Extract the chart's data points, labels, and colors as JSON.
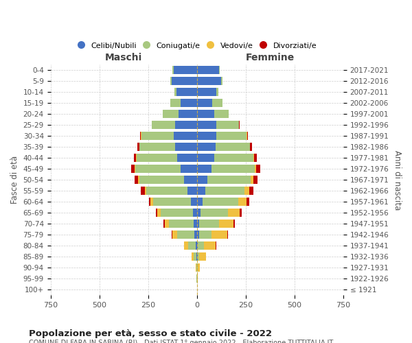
{
  "age_groups": [
    "100+",
    "95-99",
    "90-94",
    "85-89",
    "80-84",
    "75-79",
    "70-74",
    "65-69",
    "60-64",
    "55-59",
    "50-54",
    "45-49",
    "40-44",
    "35-39",
    "30-34",
    "25-29",
    "20-24",
    "15-19",
    "10-14",
    "5-9",
    "0-4"
  ],
  "birth_years": [
    "≤ 1921",
    "1922-1926",
    "1927-1931",
    "1932-1936",
    "1937-1941",
    "1942-1946",
    "1947-1951",
    "1952-1956",
    "1957-1961",
    "1962-1966",
    "1967-1971",
    "1972-1976",
    "1977-1981",
    "1982-1986",
    "1987-1991",
    "1992-1996",
    "1997-2001",
    "2002-2006",
    "2007-2011",
    "2012-2016",
    "2017-2021"
  ],
  "male_celibi": [
    0,
    0,
    0,
    2,
    5,
    12,
    15,
    20,
    30,
    50,
    65,
    85,
    100,
    110,
    120,
    110,
    95,
    85,
    105,
    130,
    120
  ],
  "male_coniugati": [
    0,
    1,
    3,
    15,
    40,
    90,
    130,
    165,
    195,
    210,
    230,
    230,
    210,
    185,
    165,
    120,
    80,
    50,
    10,
    5,
    5
  ],
  "male_vedovi": [
    0,
    1,
    4,
    12,
    20,
    25,
    20,
    18,
    12,
    8,
    5,
    3,
    2,
    1,
    1,
    0,
    0,
    0,
    0,
    0,
    0
  ],
  "male_divorziati": [
    0,
    0,
    0,
    0,
    2,
    4,
    5,
    8,
    10,
    20,
    18,
    20,
    12,
    8,
    5,
    2,
    1,
    0,
    0,
    0,
    0
  ],
  "female_nubili": [
    0,
    0,
    1,
    3,
    5,
    10,
    12,
    20,
    28,
    42,
    55,
    75,
    90,
    95,
    100,
    100,
    88,
    80,
    100,
    125,
    115
  ],
  "female_coniugate": [
    0,
    0,
    2,
    8,
    30,
    65,
    100,
    140,
    185,
    200,
    220,
    220,
    200,
    175,
    155,
    115,
    75,
    50,
    10,
    5,
    3
  ],
  "female_vedove": [
    1,
    3,
    12,
    35,
    60,
    80,
    75,
    60,
    40,
    25,
    15,
    8,
    4,
    2,
    1,
    1,
    0,
    0,
    0,
    0,
    0
  ],
  "female_divorziate": [
    0,
    0,
    0,
    1,
    3,
    5,
    8,
    10,
    15,
    22,
    20,
    22,
    14,
    10,
    6,
    3,
    1,
    0,
    0,
    0,
    0
  ],
  "color_celibi": "#4472C4",
  "color_coniugati": "#A8C880",
  "color_vedovi": "#F0C040",
  "color_divorziati": "#C00000",
  "xlim": 750,
  "title": "Popolazione per età, sesso e stato civile - 2022",
  "subtitle": "COMUNE DI FARA IN SABINA (RI) - Dati ISTAT 1° gennaio 2022 - Elaborazione TUTTITALIA.IT",
  "ylabel_left": "Fasce di età",
  "ylabel_right": "Anni di nascita",
  "xlabel_left": "Maschi",
  "xlabel_right": "Femmine",
  "legend_labels": [
    "Celibi/Nubili",
    "Coniugati/e",
    "Vedovi/e",
    "Divorziati/e"
  ]
}
